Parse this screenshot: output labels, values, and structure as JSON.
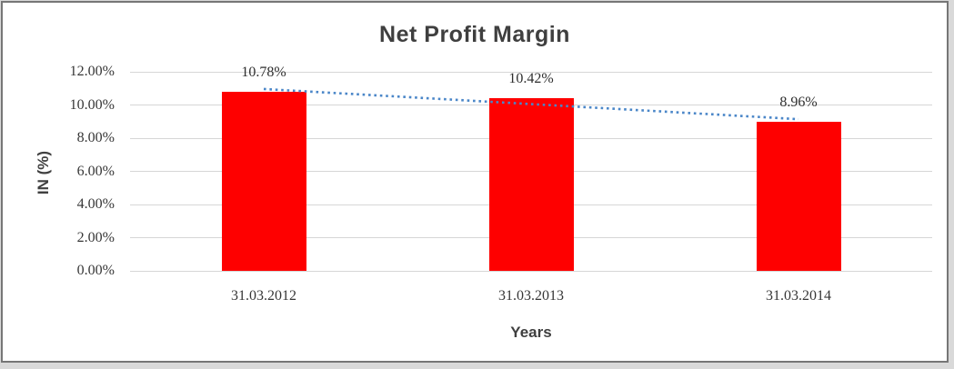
{
  "chart_data": {
    "type": "bar",
    "title": "Net Profit Margin",
    "xlabel": "Years",
    "ylabel": "IN (%)",
    "categories": [
      "31.03.2012",
      "31.03.2013",
      "31.03.2014"
    ],
    "series": [
      {
        "name": "Net Profit Margin",
        "values": [
          10.78,
          10.42,
          8.96
        ]
      }
    ],
    "data_labels": [
      "10.78%",
      "10.42%",
      "8.96%"
    ],
    "yticks": [
      "12.00%",
      "10.00%",
      "8.00%",
      "6.00%",
      "4.00%",
      "2.00%",
      "0.00%"
    ],
    "ylim": [
      0,
      12
    ],
    "ytick_step": 2,
    "grid": true,
    "legend": "none",
    "colors": {
      "bar": "#fe0000",
      "gridline": "#d6d6d6",
      "trendline": "#4a86c8",
      "text": "#3f3f3f"
    },
    "trendline": {
      "series": "Net Profit Margin",
      "kind": "linear",
      "style": "dotted"
    }
  }
}
